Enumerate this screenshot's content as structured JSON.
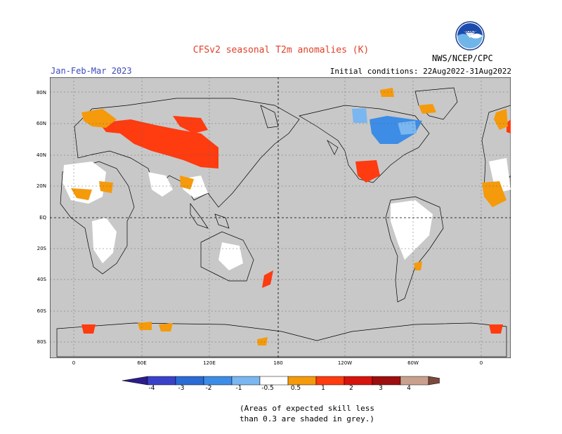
{
  "header": {
    "title": "CFSv2 seasonal T2m anomalies (K)",
    "season": "Jan-Feb-Mar 2023",
    "initial_conditions": "Initial conditions: 22Aug2022-31Aug2022",
    "agency": "NWS/NCEP/CPC",
    "logo_text": "NOAA"
  },
  "map": {
    "lat_labels": [
      "80N",
      "60N",
      "40N",
      "20N",
      "EQ",
      "20S",
      "40S",
      "60S",
      "80S"
    ],
    "lon_labels": [
      "0",
      "60E",
      "120E",
      "180",
      "120W",
      "60W",
      "0"
    ]
  },
  "colorbar": {
    "labels": [
      "-4",
      "-3",
      "-2",
      "-1",
      "-0.5",
      "0.5",
      "1",
      "2",
      "3",
      "4"
    ],
    "colors": [
      "#2a1d8a",
      "#3a41c9",
      "#2a6bd4",
      "#3d8ce6",
      "#7ab6f0",
      "#ffffff",
      "#f59a0b",
      "#ff3b10",
      "#d8120c",
      "#9e0e0e",
      "#c9a08e",
      "#7a4a3c"
    ]
  },
  "note": {
    "line1": "(Areas of expected skill less",
    "line2": "than 0.3 are shaded in grey.)"
  },
  "colors": {
    "ocean_grey": "#c8c8c8",
    "skill_white": "#ffffff",
    "warm_orange": "#f59a0b",
    "warm_red": "#ff3b10",
    "cool_blue": "#3d8ce6",
    "cool_lightblue": "#7ab6f0"
  }
}
